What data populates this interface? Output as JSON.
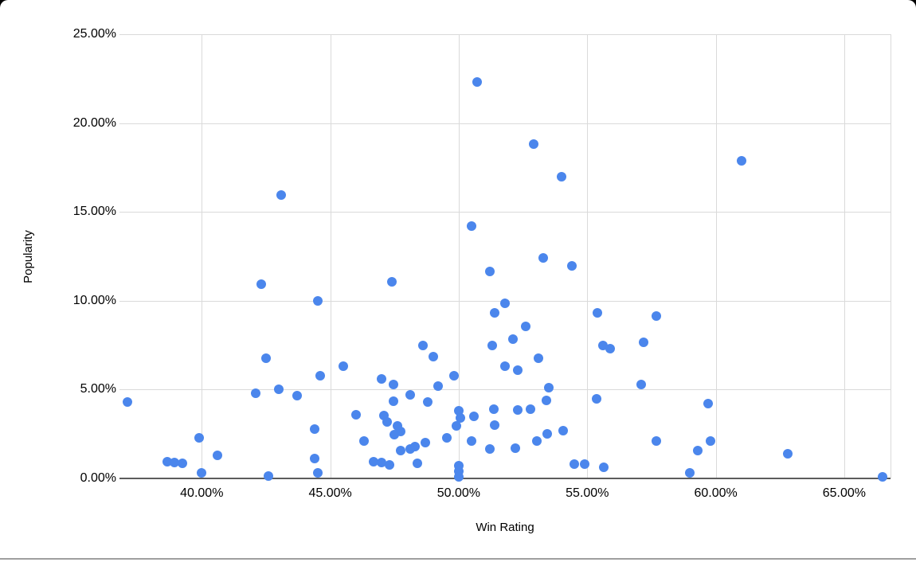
{
  "chart_data": {
    "type": "scatter",
    "title": "",
    "xlabel": "Win Rating",
    "ylabel": "Popularity",
    "x_tick_labels": [
      "40.00%",
      "45.00%",
      "50.00%",
      "55.00%",
      "60.00%",
      "65.00%"
    ],
    "x_tick_values": [
      40,
      45,
      50,
      55,
      60,
      65
    ],
    "y_tick_labels": [
      "0.00%",
      "5.00%",
      "10.00%",
      "15.00%",
      "20.00%",
      "25.00%"
    ],
    "y_tick_values": [
      0,
      5,
      10,
      15,
      20,
      25
    ],
    "xlim": [
      36.8,
      66.8
    ],
    "ylim": [
      0,
      25
    ],
    "grid": true,
    "legend_position": "none",
    "point_color": "#4b86ec",
    "grid_color": "#dadada",
    "axis_line_color": "#5c5c5c",
    "points": [
      [
        50.7,
        22.3
      ],
      [
        43.1,
        15.95
      ],
      [
        52.9,
        18.8
      ],
      [
        54.0,
        17.0
      ],
      [
        61.0,
        17.9
      ],
      [
        42.3,
        10.95
      ],
      [
        44.5,
        10.0
      ],
      [
        47.4,
        11.05
      ],
      [
        50.5,
        14.2
      ],
      [
        51.2,
        11.65
      ],
      [
        51.4,
        9.3
      ],
      [
        51.8,
        9.85
      ],
      [
        48.6,
        7.5
      ],
      [
        49.0,
        6.85
      ],
      [
        51.3,
        7.5
      ],
      [
        42.5,
        6.75
      ],
      [
        45.5,
        6.3
      ],
      [
        44.6,
        5.8
      ],
      [
        53.3,
        12.4
      ],
      [
        54.4,
        11.95
      ],
      [
        55.4,
        9.3
      ],
      [
        57.7,
        9.15
      ],
      [
        52.6,
        8.55
      ],
      [
        52.1,
        7.85
      ],
      [
        55.6,
        7.5
      ],
      [
        55.9,
        7.3
      ],
      [
        57.2,
        7.65
      ],
      [
        53.1,
        6.75
      ],
      [
        51.8,
        6.3
      ],
      [
        52.3,
        6.1
      ],
      [
        37.1,
        4.3
      ],
      [
        42.1,
        4.8
      ],
      [
        43.0,
        5.0
      ],
      [
        43.7,
        4.65
      ],
      [
        39.9,
        2.3
      ],
      [
        40.6,
        1.3
      ],
      [
        40.0,
        0.3
      ],
      [
        38.65,
        0.95
      ],
      [
        38.95,
        0.9
      ],
      [
        39.25,
        0.85
      ],
      [
        44.4,
        2.8
      ],
      [
        44.4,
        1.1
      ],
      [
        44.5,
        0.3
      ],
      [
        42.6,
        0.15
      ],
      [
        47.0,
        5.6
      ],
      [
        47.45,
        5.3
      ],
      [
        47.45,
        4.35
      ],
      [
        46.0,
        3.6
      ],
      [
        48.1,
        4.7
      ],
      [
        49.2,
        5.2
      ],
      [
        49.8,
        5.8
      ],
      [
        48.8,
        4.3
      ],
      [
        47.1,
        3.55
      ],
      [
        47.2,
        3.2
      ],
      [
        47.6,
        2.95
      ],
      [
        47.75,
        2.65
      ],
      [
        47.5,
        2.45
      ],
      [
        46.3,
        2.1
      ],
      [
        48.7,
        2.0
      ],
      [
        48.3,
        1.8
      ],
      [
        48.1,
        1.65
      ],
      [
        47.75,
        1.55
      ],
      [
        46.7,
        0.95
      ],
      [
        47.0,
        0.9
      ],
      [
        47.3,
        0.75
      ],
      [
        48.4,
        0.85
      ],
      [
        50.0,
        3.8
      ],
      [
        50.05,
        3.4
      ],
      [
        49.9,
        2.95
      ],
      [
        49.55,
        2.3
      ],
      [
        50.6,
        3.5
      ],
      [
        51.35,
        3.9
      ],
      [
        51.4,
        3.0
      ],
      [
        50.5,
        2.1
      ],
      [
        51.2,
        1.65
      ],
      [
        50.0,
        0.7
      ],
      [
        50.0,
        0.4
      ],
      [
        50.0,
        0.1
      ],
      [
        52.3,
        3.85
      ],
      [
        52.8,
        3.9
      ],
      [
        52.2,
        1.7
      ],
      [
        53.05,
        2.1
      ],
      [
        53.45,
        2.5
      ],
      [
        54.05,
        2.7
      ],
      [
        53.5,
        5.1
      ],
      [
        53.4,
        4.4
      ],
      [
        55.35,
        4.5
      ],
      [
        57.1,
        5.3
      ],
      [
        57.7,
        2.1
      ],
      [
        54.5,
        0.8
      ],
      [
        54.9,
        0.8
      ],
      [
        55.65,
        0.65
      ],
      [
        59.7,
        4.2
      ],
      [
        59.8,
        2.1
      ],
      [
        59.3,
        1.55
      ],
      [
        59.0,
        0.3
      ],
      [
        62.8,
        1.4
      ],
      [
        66.5,
        0.1
      ]
    ]
  }
}
